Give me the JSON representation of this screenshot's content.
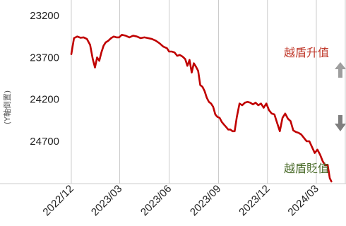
{
  "chart_data": {
    "type": "line",
    "ylabel": "(Y軸倒置)",
    "y_inverted": true,
    "ylim": [
      23200,
      25350
    ],
    "y_ticks": [
      23200,
      23700,
      24200,
      24700
    ],
    "y_tick_labels": [
      "23200",
      "23700",
      "24200",
      "24700"
    ],
    "xlim": [
      "2022-11-05",
      "2024-03-31"
    ],
    "x_ticks": [
      "2022-12-01",
      "2023-03-01",
      "2023-06-01",
      "2023-09-01",
      "2023-12-01",
      "2024-03-01"
    ],
    "x_tick_labels": [
      "2022/12",
      "2023/03",
      "2023/06",
      "2023/09",
      "2023/12",
      "2024/03"
    ],
    "grid": "vertical",
    "series": [
      {
        "color": "#c00000",
        "x": [
          "2022-12-01",
          "2022-12-06",
          "2022-12-12",
          "2022-12-18",
          "2022-12-24",
          "2022-12-30",
          "2023-01-05",
          "2023-01-10",
          "2023-01-14",
          "2023-01-18",
          "2023-01-22",
          "2023-01-26",
          "2023-01-30",
          "2023-02-03",
          "2023-02-08",
          "2023-02-13",
          "2023-02-18",
          "2023-02-23",
          "2023-02-28",
          "2023-03-05",
          "2023-03-12",
          "2023-03-19",
          "2023-03-26",
          "2023-04-02",
          "2023-04-09",
          "2023-04-16",
          "2023-04-23",
          "2023-04-30",
          "2023-05-07",
          "2023-05-14",
          "2023-05-21",
          "2023-05-28",
          "2023-06-01",
          "2023-06-06",
          "2023-06-11",
          "2023-06-16",
          "2023-06-21",
          "2023-06-26",
          "2023-07-01",
          "2023-07-05",
          "2023-07-09",
          "2023-07-13",
          "2023-07-17",
          "2023-07-21",
          "2023-07-25",
          "2023-07-29",
          "2023-08-02",
          "2023-08-06",
          "2023-08-10",
          "2023-08-14",
          "2023-08-18",
          "2023-08-22",
          "2023-08-26",
          "2023-08-30",
          "2023-09-03",
          "2023-09-07",
          "2023-09-11",
          "2023-09-15",
          "2023-09-19",
          "2023-09-23",
          "2023-09-27",
          "2023-10-01",
          "2023-10-05",
          "2023-10-10",
          "2023-10-15",
          "2023-10-20",
          "2023-10-25",
          "2023-10-30",
          "2023-11-04",
          "2023-11-09",
          "2023-11-14",
          "2023-11-19",
          "2023-11-24",
          "2023-11-29",
          "2023-12-04",
          "2023-12-09",
          "2023-12-14",
          "2023-12-19",
          "2023-12-24",
          "2023-12-29",
          "2024-01-03",
          "2024-01-08",
          "2024-01-13",
          "2024-01-18",
          "2024-01-23",
          "2024-01-28",
          "2024-02-02",
          "2024-02-07",
          "2024-02-12",
          "2024-02-17",
          "2024-02-22",
          "2024-02-27",
          "2024-03-03",
          "2024-03-08",
          "2024-03-13",
          "2024-03-18",
          "2024-03-22",
          "2024-03-26",
          "2024-03-29"
        ],
        "y": [
          23660,
          23470,
          23450,
          23465,
          23460,
          23480,
          23550,
          23720,
          23820,
          23700,
          23740,
          23640,
          23560,
          23520,
          23500,
          23470,
          23450,
          23460,
          23460,
          23430,
          23440,
          23460,
          23440,
          23450,
          23470,
          23460,
          23470,
          23480,
          23500,
          23530,
          23570,
          23590,
          23630,
          23630,
          23640,
          23680,
          23670,
          23690,
          23720,
          23800,
          23730,
          23880,
          23770,
          23810,
          23860,
          24030,
          24050,
          24100,
          24180,
          24230,
          24250,
          24290,
          24380,
          24410,
          24420,
          24470,
          24500,
          24530,
          24560,
          24560,
          24580,
          24580,
          24410,
          24250,
          24270,
          24240,
          24230,
          24240,
          24260,
          24240,
          24270,
          24250,
          24300,
          24250,
          24330,
          24370,
          24380,
          24480,
          24580,
          24420,
          24370,
          24430,
          24460,
          24570,
          24590,
          24600,
          24620,
          24660,
          24700,
          24700,
          24770,
          24840,
          24800,
          24860,
          24940,
          24990,
          24980,
          25140,
          25180
        ]
      }
    ],
    "annotations": {
      "up_label": "越盾升值",
      "down_label": "越盾貶值",
      "up_arrow_color": "#9e9e9e",
      "down_arrow_color": "#7f7f7f",
      "up_text_color": "#c0392b",
      "down_text_color": "#4a6b2a"
    },
    "colors": {
      "grid": "#cccccc",
      "axis_text": "#222222"
    }
  }
}
